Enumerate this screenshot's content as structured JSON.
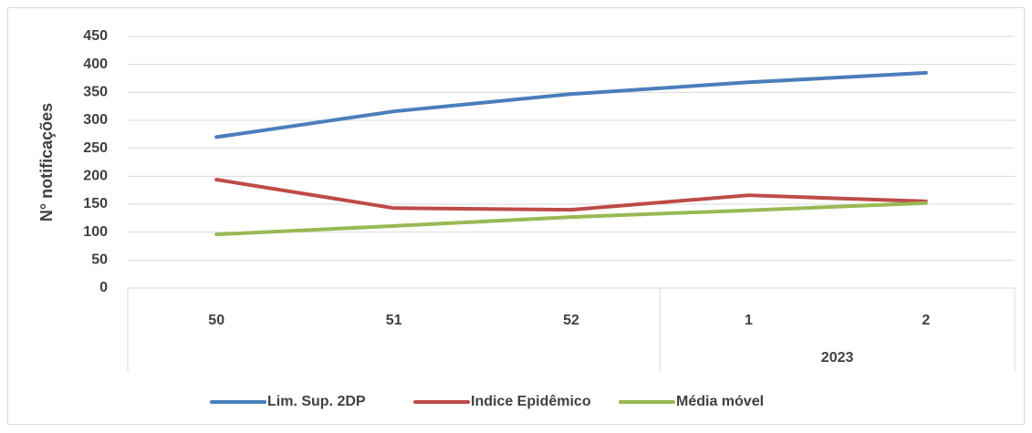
{
  "chart_data": {
    "type": "line",
    "y_label": "N° notificações",
    "categories": [
      "50",
      "51",
      "52",
      "1",
      "2"
    ],
    "x_groups": [
      null,
      null,
      null,
      "2023",
      "2023"
    ],
    "series": [
      {
        "name": "Lim. Sup. 2DP",
        "color": "#4a7ebb",
        "values": [
          270,
          316,
          347,
          368,
          385
        ]
      },
      {
        "name": "Indice Epidêmico",
        "color": "#be4b48",
        "values": [
          194,
          143,
          140,
          166,
          155
        ]
      },
      {
        "name": "Média móvel",
        "color": "#98b954",
        "values": [
          96,
          111,
          127,
          139,
          152
        ]
      }
    ],
    "ylim": [
      0,
      450
    ],
    "yticks": [
      0,
      50,
      100,
      150,
      200,
      250,
      300,
      350,
      400,
      450
    ],
    "grid": true,
    "legend": "bottom"
  }
}
